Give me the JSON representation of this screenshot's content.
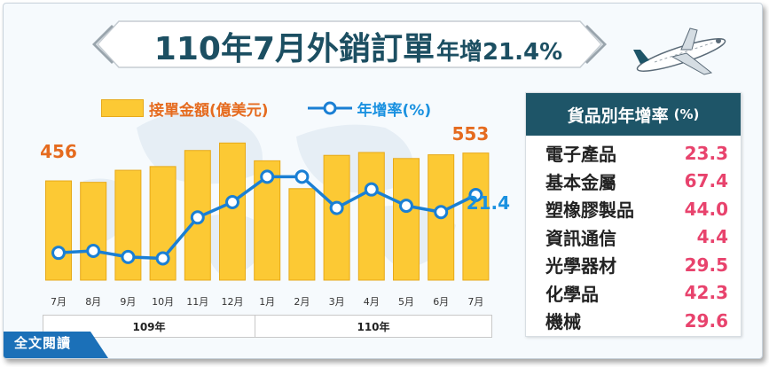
{
  "headline": {
    "main": "110年7月外銷訂單",
    "suffix": "年增21.4%"
  },
  "legend": {
    "bar_label": "接單金額(億美元)",
    "line_label": "年增率(%)"
  },
  "year_labels": [
    "109年",
    "110年"
  ],
  "read_all": "全文閱讀",
  "panel": {
    "title": "貨品別年增率",
    "unit": "(%)",
    "items": [
      {
        "name": "電子產品",
        "value": "23.3"
      },
      {
        "name": "基本金屬",
        "value": "67.4"
      },
      {
        "name": "塑橡膠製品",
        "value": "44.0"
      },
      {
        "name": "資訊通信",
        "value": "4.4"
      },
      {
        "name": "光學器材",
        "value": "29.5"
      },
      {
        "name": "化學品",
        "value": "42.3"
      },
      {
        "name": "機械",
        "value": "29.6"
      }
    ]
  },
  "chart_data": {
    "type": "bar",
    "categories": [
      "7月",
      "8月",
      "9月",
      "10月",
      "11月",
      "12月",
      "1月",
      "2月",
      "3月",
      "4月",
      "5月",
      "6月",
      "7月"
    ],
    "series": [
      {
        "name": "接單金額(億美元)",
        "type": "bar",
        "values": [
          456,
          451,
          493,
          506,
          562,
          588,
          526,
          429,
          545,
          555,
          534,
          547,
          553
        ]
      },
      {
        "name": "年增率(%)",
        "type": "line",
        "values": [
          -2.3,
          -1.5,
          -4.0,
          -4.6,
          12.2,
          18.5,
          28.9,
          28.9,
          16.1,
          23.7,
          17.0,
          14.4,
          21.4
        ]
      }
    ],
    "labeled_points": {
      "first_bar": "456",
      "last_bar": "553",
      "last_line": "21.4"
    },
    "colors": {
      "bar": "#fcc934",
      "bar_border": "#e7a91a",
      "line": "#1a7fd4",
      "bar_label": "#e56b1f",
      "line_label": "#1a91e0"
    }
  }
}
